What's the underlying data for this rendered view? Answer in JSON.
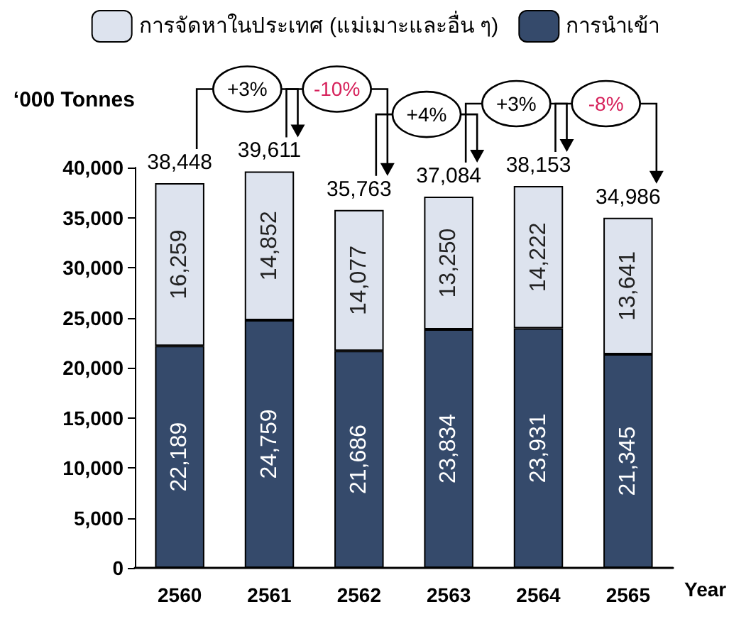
{
  "chart_data": {
    "type": "bar",
    "stacked": true,
    "ylabel": "‘000 Tonnes",
    "xlabel": "Year",
    "categories": [
      "2560",
      "2561",
      "2562",
      "2563",
      "2564",
      "2565"
    ],
    "series": [
      {
        "name": "การนำเข้า",
        "color": "#354a6b",
        "values": [
          22189,
          24759,
          21686,
          23834,
          23931,
          21345
        ],
        "value_labels": [
          "22,189",
          "24,759",
          "21,686",
          "23,834",
          "23,931",
          "21,345"
        ]
      },
      {
        "name": "การจัดหาในประเทศ (แม่เมาะและอื่น ๆ)",
        "color": "#dde3ee",
        "values": [
          16259,
          14852,
          14077,
          13250,
          14222,
          13641
        ],
        "value_labels": [
          "16,259",
          "14,852",
          "14,077",
          "13,250",
          "14,222",
          "13,641"
        ]
      }
    ],
    "totals": [
      "38,448",
      "39,611",
      "35,763",
      "37,084",
      "38,153",
      "34,986"
    ],
    "ylim": [
      0,
      40000
    ],
    "yticks": [
      0,
      {
        "value": 5000,
        "label": "5,000"
      },
      {
        "value": 10000,
        "label": "10,000"
      },
      {
        "value": 15000,
        "label": "15,000"
      },
      {
        "value": 20000,
        "label": "20,000"
      },
      {
        "value": 25000,
        "label": "25,000"
      },
      {
        "value": 30000,
        "label": "30,000"
      },
      {
        "value": 35000,
        "label": "35,000"
      },
      {
        "value": 40000,
        "label": "40,000"
      }
    ],
    "grid": false,
    "legend": "top",
    "annotations": [
      "+3%",
      "-10%",
      "+4%",
      "+3%",
      "-8%"
    ]
  }
}
